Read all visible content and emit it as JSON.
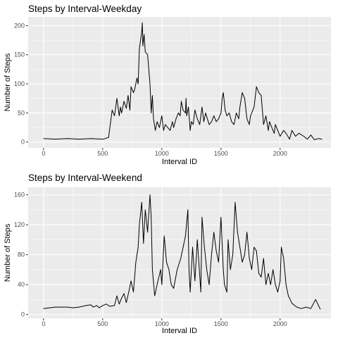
{
  "chart_data": [
    {
      "type": "line",
      "title": "Steps by Interval-Weekday",
      "xlabel": "Interval ID",
      "ylabel": "Number of Steps",
      "xlim": [
        -130,
        2430
      ],
      "ylim": [
        -10,
        215
      ],
      "xticks": [
        0,
        500,
        1000,
        1500,
        2000
      ],
      "yticks": [
        0,
        50,
        100,
        150,
        200
      ],
      "xtick_labels": [
        "0",
        "500",
        "1000",
        "1500",
        "2000"
      ],
      "ytick_labels": [
        "0",
        "50",
        "100",
        "150",
        "200"
      ],
      "grid": true,
      "series": [
        {
          "x": [
            0,
            100,
            200,
            300,
            400,
            500,
            520,
            550,
            580,
            600,
            620,
            640,
            650,
            660,
            680,
            700,
            715,
            730,
            740,
            760,
            770,
            790,
            800,
            810,
            820,
            830,
            835,
            840,
            850,
            860,
            880,
            900,
            910,
            920,
            930,
            945,
            960,
            980,
            1000,
            1015,
            1030,
            1050,
            1070,
            1090,
            1100,
            1120,
            1140,
            1155,
            1165,
            1180,
            1200,
            1205,
            1210,
            1225,
            1240,
            1250,
            1265,
            1280,
            1300,
            1320,
            1340,
            1355,
            1370,
            1385,
            1400,
            1420,
            1440,
            1460,
            1480,
            1500,
            1510,
            1520,
            1535,
            1550,
            1570,
            1590,
            1610,
            1630,
            1650,
            1660,
            1680,
            1700,
            1720,
            1740,
            1750,
            1770,
            1780,
            1800,
            1820,
            1840,
            1850,
            1860,
            1880,
            1900,
            1910,
            1930,
            1950,
            1960,
            1980,
            2000,
            2030,
            2050,
            2080,
            2100,
            2130,
            2160,
            2200,
            2230,
            2260,
            2290,
            2320,
            2355
          ],
          "values": [
            6,
            5,
            6,
            5,
            6,
            5,
            6,
            8,
            55,
            45,
            75,
            45,
            60,
            50,
            70,
            58,
            80,
            55,
            95,
            85,
            90,
            110,
            100,
            160,
            175,
            190,
            205,
            165,
            185,
            155,
            150,
            100,
            50,
            80,
            40,
            20,
            35,
            25,
            45,
            20,
            30,
            25,
            20,
            35,
            25,
            40,
            50,
            45,
            70,
            55,
            50,
            75,
            45,
            60,
            20,
            35,
            30,
            55,
            40,
            30,
            60,
            35,
            50,
            40,
            30,
            35,
            45,
            35,
            40,
            50,
            75,
            85,
            55,
            45,
            50,
            35,
            30,
            50,
            40,
            60,
            85,
            75,
            40,
            30,
            45,
            55,
            60,
            95,
            85,
            80,
            55,
            30,
            45,
            20,
            35,
            25,
            15,
            30,
            20,
            10,
            20,
            15,
            5,
            20,
            10,
            15,
            10,
            5,
            12,
            4,
            6,
            5
          ]
        }
      ]
    },
    {
      "type": "line",
      "title": "Steps by Interval-Weekend",
      "xlabel": "Interval ID",
      "ylabel": "Number of Steps",
      "xlim": [
        -130,
        2430
      ],
      "ylim": [
        -5,
        170
      ],
      "xticks": [
        0,
        500,
        1000,
        1500,
        2000
      ],
      "yticks": [
        0,
        40,
        80,
        120,
        160
      ],
      "xtick_labels": [
        "0",
        "500",
        "1000",
        "1500",
        "2000"
      ],
      "ytick_labels": [
        "0",
        "40",
        "80",
        "120",
        "160"
      ],
      "grid": true,
      "series": [
        {
          "x": [
            0,
            50,
            100,
            150,
            200,
            250,
            300,
            330,
            360,
            400,
            420,
            450,
            470,
            500,
            530,
            560,
            600,
            620,
            640,
            660,
            680,
            700,
            720,
            740,
            760,
            780,
            800,
            810,
            830,
            845,
            860,
            870,
            880,
            900,
            910,
            920,
            940,
            960,
            990,
            1000,
            1020,
            1040,
            1060,
            1080,
            1100,
            1130,
            1160,
            1200,
            1220,
            1230,
            1240,
            1260,
            1280,
            1300,
            1330,
            1340,
            1360,
            1380,
            1400,
            1420,
            1440,
            1460,
            1480,
            1500,
            1520,
            1530,
            1550,
            1560,
            1580,
            1600,
            1620,
            1640,
            1660,
            1680,
            1700,
            1720,
            1740,
            1760,
            1780,
            1800,
            1820,
            1840,
            1860,
            1880,
            1900,
            1920,
            1940,
            1960,
            1980,
            2000,
            2010,
            2030,
            2050,
            2070,
            2100,
            2140,
            2180,
            2220,
            2260,
            2300,
            2340
          ],
          "values": [
            8,
            9,
            10,
            10,
            10,
            9,
            10,
            11,
            12,
            13,
            10,
            12,
            9,
            12,
            14,
            11,
            12,
            25,
            14,
            22,
            28,
            16,
            30,
            45,
            30,
            70,
            90,
            120,
            150,
            95,
            140,
            125,
            110,
            160,
            130,
            60,
            25,
            40,
            60,
            40,
            105,
            70,
            60,
            40,
            35,
            60,
            75,
            105,
            140,
            60,
            30,
            90,
            45,
            100,
            30,
            130,
            90,
            60,
            40,
            80,
            110,
            85,
            70,
            130,
            60,
            40,
            30,
            100,
            60,
            80,
            150,
            110,
            90,
            70,
            80,
            110,
            75,
            60,
            90,
            85,
            55,
            50,
            75,
            40,
            55,
            40,
            60,
            40,
            30,
            45,
            90,
            75,
            40,
            25,
            15,
            10,
            8,
            10,
            8,
            20,
            7
          ]
        }
      ]
    }
  ]
}
